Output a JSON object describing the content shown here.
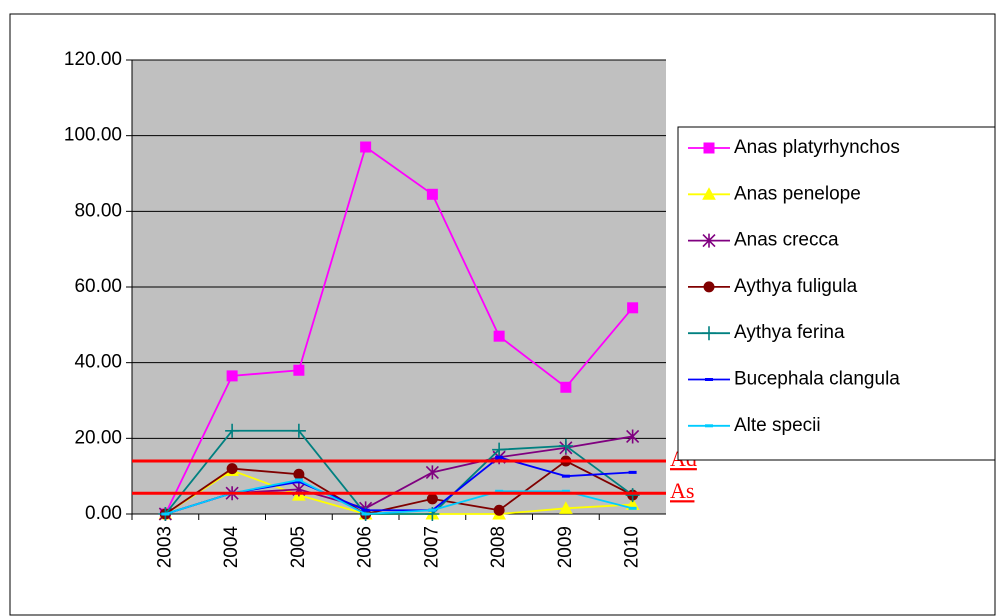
{
  "chart_data": {
    "type": "line",
    "categories": [
      "2003",
      "2004",
      "2005",
      "2006",
      "2007",
      "2008",
      "2009",
      "2010"
    ],
    "series": [
      {
        "name": "Anas platyrhynchos",
        "color": "#ff00ff",
        "marker": "square",
        "values": [
          0,
          36.5,
          38,
          97,
          84.5,
          47,
          33.5,
          54.5
        ]
      },
      {
        "name": "Anas penelope",
        "color": "#ffff00",
        "marker": "triangle",
        "values": [
          0,
          11.5,
          5,
          0,
          0,
          0,
          1.5,
          2.5
        ]
      },
      {
        "name": "Anas crecca",
        "color": "#800080",
        "marker": "star",
        "values": [
          0,
          5.5,
          6.5,
          1.5,
          11,
          15,
          17.5,
          20.5
        ]
      },
      {
        "name": "Aythya fuligula",
        "color": "#800000",
        "marker": "circle",
        "values": [
          0,
          12,
          10.5,
          0,
          4,
          1,
          14,
          5
        ]
      },
      {
        "name": "Aythya ferina",
        "color": "#008080",
        "marker": "plus",
        "values": [
          0,
          22,
          22,
          0,
          0,
          17,
          18,
          5
        ]
      },
      {
        "name": "Bucephala clangula",
        "color": "#0000ff",
        "marker": "dash",
        "values": [
          0,
          5.5,
          8.5,
          1,
          1,
          15,
          10,
          11
        ]
      },
      {
        "name": "Alte specii",
        "color": "#00ccff",
        "marker": "dash",
        "values": [
          0,
          5.5,
          9,
          0,
          1,
          6,
          6,
          1.5
        ]
      }
    ],
    "reference_lines": [
      {
        "label": "Ad",
        "value": 14,
        "color": "#ff0000"
      },
      {
        "label": "As",
        "value": 5.5,
        "color": "#ff0000"
      }
    ],
    "ylim": [
      0,
      120
    ],
    "yticks": [
      {
        "value": 0,
        "label": "0.00"
      },
      {
        "value": 20,
        "label": "20.00"
      },
      {
        "value": 40,
        "label": "40.00"
      },
      {
        "value": 60,
        "label": "60.00"
      },
      {
        "value": 80,
        "label": "80.00"
      },
      {
        "value": 100,
        "label": "100.00"
      },
      {
        "value": 120,
        "label": "120.00"
      }
    ],
    "grid": true,
    "plot_background": "#c0c0c0",
    "legend": "right"
  }
}
